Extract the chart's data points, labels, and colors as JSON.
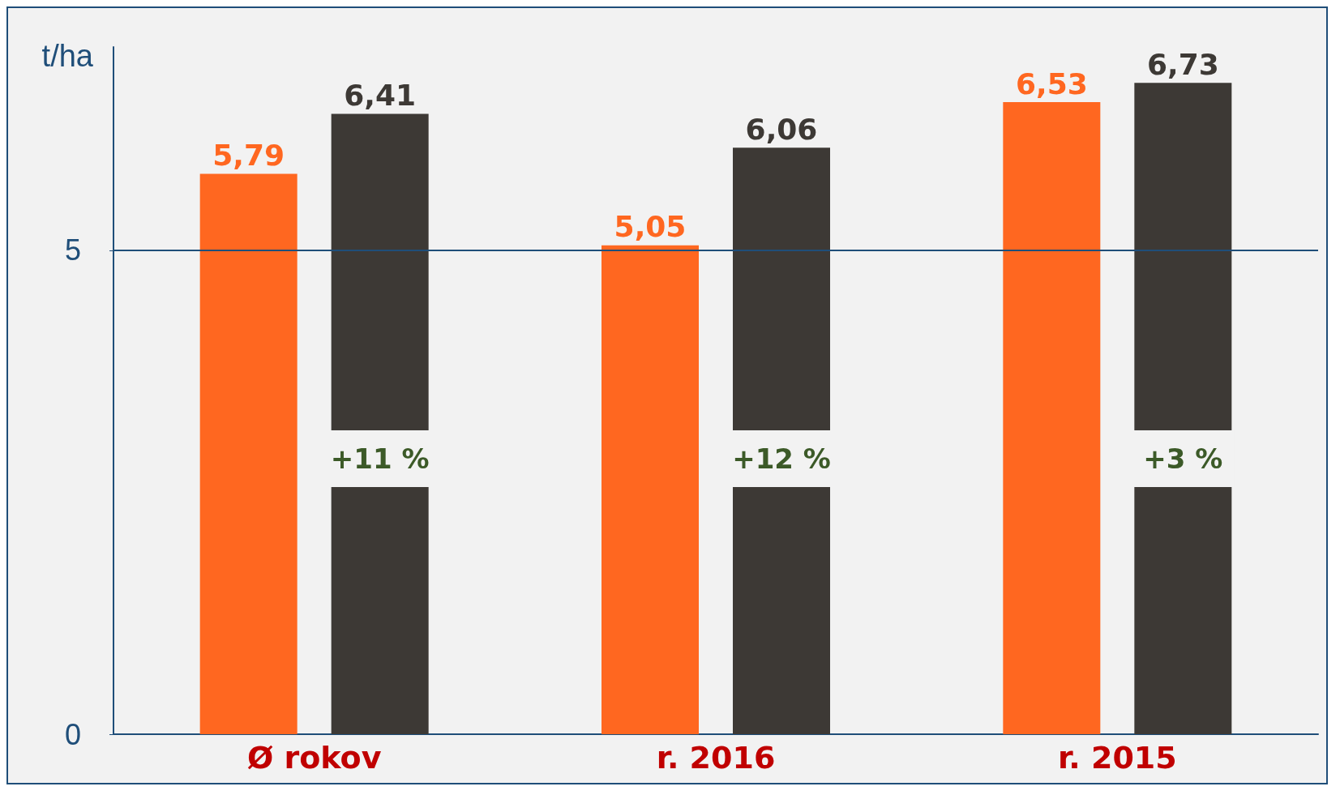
{
  "chart_data": {
    "type": "bar",
    "ylabel": "t/ha",
    "categories": [
      "Ø rokov",
      "r. 2016",
      "r. 2015"
    ],
    "series": [
      {
        "color": "#ff6720",
        "values": [
          5.79,
          5.05,
          6.53
        ],
        "value_labels": [
          "5,79",
          "5,05",
          "6,53"
        ]
      },
      {
        "color": "#3d3935",
        "values": [
          6.41,
          6.06,
          6.73
        ],
        "value_labels": [
          "6,41",
          "6,06",
          "6,73"
        ]
      }
    ],
    "ylim": [
      0,
      7.1
    ],
    "yticks": [
      0,
      5
    ],
    "ref_lines": [
      {
        "axis": "y",
        "value": 5,
        "color": "#1f4e79"
      }
    ],
    "annotations": [
      "+11 %",
      "+12 %",
      "+3 %"
    ]
  }
}
